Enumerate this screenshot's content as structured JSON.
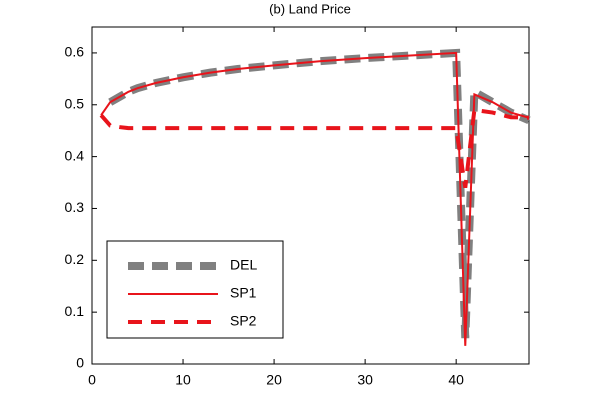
{
  "chart_data": {
    "type": "line",
    "title": "(b) Land Price",
    "x": [
      1,
      2,
      3,
      4,
      5,
      7,
      10,
      13,
      16,
      20,
      25,
      30,
      35,
      40,
      41,
      42,
      44,
      46,
      48
    ],
    "series": [
      {
        "name": "DEL",
        "color": "#808080",
        "style": "thick-dash",
        "values": [
          null,
          0.505,
          0.515,
          0.525,
          0.532,
          0.542,
          0.553,
          0.562,
          0.569,
          0.576,
          0.584,
          0.59,
          0.595,
          0.6,
          0.05,
          0.525,
          0.505,
          0.485,
          0.47
        ]
      },
      {
        "name": "SP1",
        "color": "#e8141b",
        "style": "solid",
        "values": [
          0.48,
          0.505,
          0.515,
          0.525,
          0.532,
          0.542,
          0.553,
          0.562,
          0.569,
          0.576,
          0.584,
          0.59,
          0.595,
          0.6,
          0.035,
          0.52,
          0.505,
          0.485,
          0.475
        ]
      },
      {
        "name": "SP2",
        "color": "#e8141b",
        "style": "dash",
        "values": [
          0.48,
          0.46,
          0.457,
          0.455,
          0.455,
          0.455,
          0.455,
          0.455,
          0.455,
          0.455,
          0.455,
          0.455,
          0.455,
          0.455,
          0.34,
          0.49,
          0.485,
          0.476,
          0.475
        ]
      }
    ],
    "xlim": [
      0,
      48
    ],
    "xticks": [
      0,
      10,
      20,
      30,
      40
    ],
    "ylim": [
      0,
      0.65
    ],
    "yticks": [
      0,
      0.1,
      0.2,
      0.3,
      0.4,
      0.5,
      0.6
    ],
    "legend": "lower-left"
  }
}
